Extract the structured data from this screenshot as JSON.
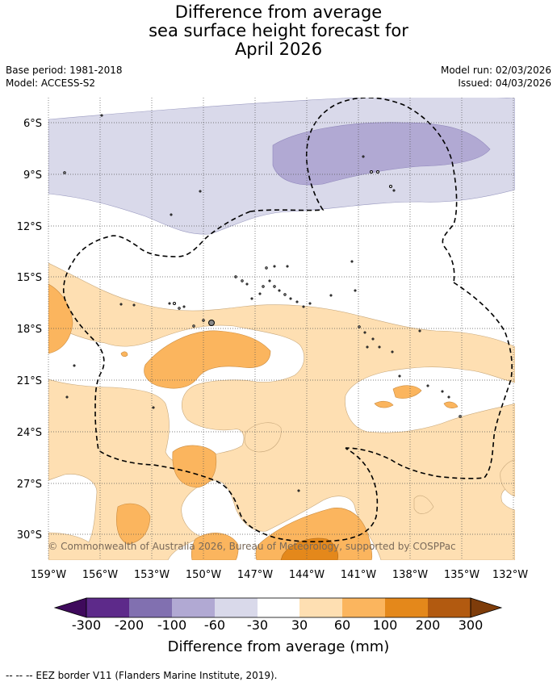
{
  "title": {
    "line1": "Difference from average",
    "line2": "sea surface height forecast for",
    "line3": "April 2026"
  },
  "meta": {
    "base_period": "Base period: 1981-2018",
    "model": "Model: ACCESS-S2",
    "model_run": "Model run: 02/03/2026",
    "issued": "Issued: 04/03/2026"
  },
  "map": {
    "lat_labels": [
      "6°S",
      "9°S",
      "12°S",
      "15°S",
      "18°S",
      "21°S",
      "24°S",
      "27°S",
      "30°S"
    ],
    "lon_labels": [
      "159°W",
      "156°W",
      "153°W",
      "150°W",
      "147°W",
      "144°W",
      "141°W",
      "138°W",
      "135°W",
      "132°W"
    ],
    "copyright": "© Commonwealth of Australia 2026, Bureau of Meteorology, supported by COSPPac"
  },
  "colorbar": {
    "labels": [
      "-300",
      "-200",
      "-100",
      "-60",
      "-30",
      "30",
      "60",
      "100",
      "200",
      "300"
    ],
    "colors": [
      "#3f0a5c",
      "#5d2a8a",
      "#8170b0",
      "#b1a9d3",
      "#d9d9ea",
      "#ffffff",
      "#fedfb2",
      "#fbb55e",
      "#e4881b",
      "#b25a10",
      "#7e3c0a"
    ],
    "title": "Difference from average (mm)"
  },
  "footnote": "--  --  -- EEZ border V11 (Flanders Marine Institute, 2019)."
}
